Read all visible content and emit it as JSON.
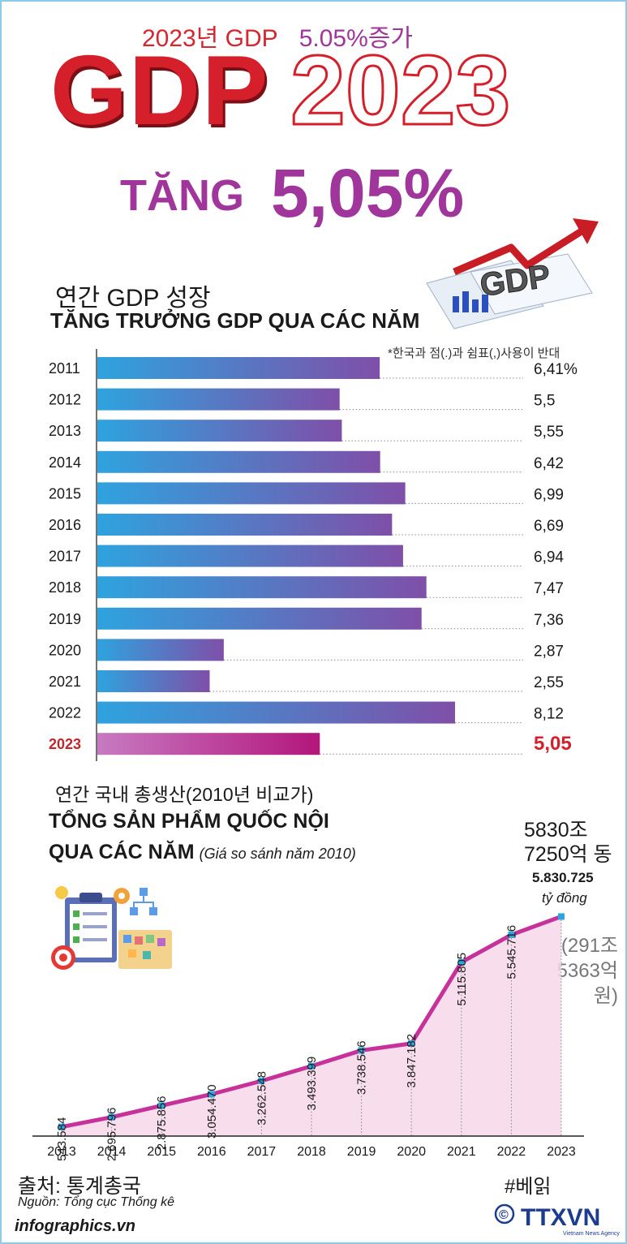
{
  "header": {
    "ko_line_left": "2023년 GDP",
    "ko_line_right": "5.05%증가",
    "big_gdp": "GDP",
    "big_year": "2023",
    "tang_word": "TĂNG",
    "tang_value": "5,05%"
  },
  "colors": {
    "red": "#d51f2b",
    "purple": "#a0359b",
    "bar_start": "#2ea3df",
    "bar_end": "#7f4fa8",
    "highlight_start": "#c77ac2",
    "highlight_end": "#b3167b",
    "line": "#c6319a",
    "marker": "#2ea3df",
    "area": "#f7d7ea"
  },
  "section1": {
    "title_ko": "연간 GDP 성장",
    "title_vi": "TĂNG TRƯỞNG GDP QUA CÁC NĂM",
    "note_ko": "*한국과 점(.)과 쉼표(,)사용이 반대"
  },
  "section2": {
    "title_ko": "연간 국내 총생산(2010년 비교가)",
    "title_vi_line1": "TỔNG SẢN PHẨM QUỐC NỘI",
    "title_vi_line2": "QUA CÁC NĂM",
    "title_vi_note": "(Giá so sánh năm 2010)",
    "last_ko_line1": "5830조",
    "last_ko_line2": "7250억 동",
    "last_value": "5.830.725",
    "last_unit": "tỷ đồng",
    "diff_ko": "(291조 5363억 원)"
  },
  "footer": {
    "source_ko": "출처: 통계총국",
    "source_vi": "Nguồn: Tổng cục Thống kê",
    "site": "infographics.vn",
    "hashtag": "#베읽",
    "agency": "TTXVN",
    "agency_sub": "Vietnam News Agency",
    "copyright": "©"
  },
  "chart_data": [
    {
      "type": "bar",
      "orientation": "horizontal",
      "title": "TĂNG TRƯỞNG GDP QUA CÁC NĂM",
      "categories": [
        "2011",
        "2012",
        "2013",
        "2014",
        "2015",
        "2016",
        "2017",
        "2018",
        "2019",
        "2020",
        "2021",
        "2022",
        "2023"
      ],
      "values": [
        6.41,
        5.5,
        5.55,
        6.42,
        6.99,
        6.69,
        6.94,
        7.47,
        7.36,
        2.87,
        2.55,
        8.12,
        5.05
      ],
      "labels": [
        "6,41%",
        "5,5",
        "5,55",
        "6,42",
        "6,99",
        "6,69",
        "6,94",
        "7,47",
        "7,36",
        "2,87",
        "2,55",
        "8,12",
        "5,05"
      ],
      "highlight": "2023",
      "xlim": [
        0,
        8.12
      ]
    },
    {
      "type": "area",
      "title": "TỔNG SẢN PHẨM QUỐC NỘI QUA CÁC NĂM",
      "categories": [
        "2013",
        "2014",
        "2015",
        "2016",
        "2017",
        "2018",
        "2019",
        "2020",
        "2021",
        "2022",
        "2023"
      ],
      "values": [
        2543584,
        2695796,
        2875856,
        3054470,
        3262548,
        3493399,
        3738546,
        3847182,
        5115805,
        5545716,
        5830725
      ],
      "labels": [
        "2.543.584",
        "2.695.796",
        "2.875.856",
        "3.054.470",
        "3.262.548",
        "3.493.399",
        "3.738.546",
        "3.847.182",
        "5.115.805",
        "5.545.716",
        "5.830.725"
      ],
      "unit": "tỷ đồng"
    }
  ]
}
